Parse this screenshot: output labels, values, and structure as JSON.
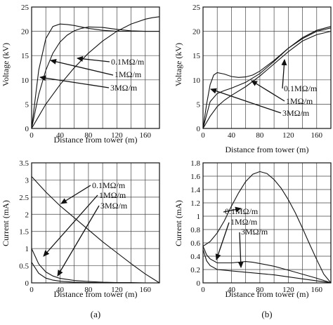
{
  "labels": {
    "left": "(a)",
    "right": "(b)"
  },
  "chart_data": [
    {
      "type": "line",
      "xlabel": "Distance from tower (m)",
      "ylabel": "Voltage (kV)",
      "xlim": [
        0,
        180
      ],
      "ylim": [
        0,
        25
      ],
      "grid": true,
      "xticks": [
        "0",
        "40",
        "80",
        "120",
        "160"
      ],
      "yticks": [
        "0",
        "5",
        "10",
        "15",
        "20",
        "25"
      ],
      "annotations": [
        "0.1MΩ/m",
        "1MΩ/m",
        "3MΩ/m"
      ],
      "series": [
        {
          "name": "0.1MΩ/m",
          "x": [
            0,
            10,
            20,
            30,
            40,
            50,
            60,
            70,
            80,
            100,
            120,
            140,
            160,
            180
          ],
          "y": [
            0,
            12,
            18.5,
            21,
            21.5,
            21.4,
            21.2,
            20.9,
            20.6,
            20.2,
            20,
            20,
            20,
            20
          ]
        },
        {
          "name": "1MΩ/m",
          "x": [
            0,
            10,
            20,
            30,
            40,
            50,
            60,
            70,
            80,
            100,
            120,
            140,
            160,
            180
          ],
          "y": [
            0,
            7,
            12,
            15.5,
            17.8,
            19.2,
            20.1,
            20.6,
            20.9,
            20.8,
            20.4,
            20.1,
            20,
            20
          ]
        },
        {
          "name": "3MΩ/m",
          "x": [
            0,
            10,
            20,
            30,
            40,
            60,
            80,
            100,
            120,
            140,
            160,
            170,
            180
          ],
          "y": [
            0,
            2.5,
            5,
            7,
            9,
            12.5,
            15.5,
            18,
            20,
            21.5,
            22.5,
            22.8,
            23
          ]
        }
      ]
    },
    {
      "type": "line",
      "xlabel": "Distance from tower (m)",
      "ylabel": "Voltage (kV)",
      "xlim": [
        0,
        180
      ],
      "ylim": [
        0,
        25
      ],
      "grid": true,
      "xticks": [
        "0",
        "40",
        "80",
        "120",
        "160"
      ],
      "yticks": [
        "0",
        "5",
        "10",
        "15",
        "20",
        "25"
      ],
      "annotations": [
        "0.1MΩ/m",
        "1MΩ/m",
        "3MΩ/m"
      ],
      "series": [
        {
          "name": "0.1MΩ/m",
          "x": [
            0,
            5,
            10,
            15,
            20,
            30,
            40,
            50,
            60,
            70,
            80,
            100,
            120,
            140,
            160,
            180
          ],
          "y": [
            0,
            5,
            9,
            11,
            11.5,
            11.2,
            10.7,
            10.5,
            10.6,
            11,
            11.8,
            14,
            16.5,
            18.5,
            20,
            20.7
          ]
        },
        {
          "name": "1MΩ/m",
          "x": [
            0,
            10,
            20,
            30,
            40,
            60,
            80,
            100,
            120,
            140,
            160,
            180
          ],
          "y": [
            0,
            5.5,
            7.2,
            7.8,
            8.3,
            9.5,
            11.3,
            13.8,
            16.5,
            18.7,
            20.2,
            21
          ]
        },
        {
          "name": "3MΩ/m",
          "x": [
            0,
            10,
            20,
            30,
            40,
            60,
            80,
            100,
            120,
            140,
            160,
            180
          ],
          "y": [
            0,
            2.5,
            4.5,
            5.8,
            6.8,
            8.6,
            10.8,
            13.3,
            15.8,
            18,
            19.3,
            20
          ]
        }
      ]
    },
    {
      "type": "line",
      "xlabel": "Distance from tower (m)",
      "ylabel": "Current (mA)",
      "xlim": [
        0,
        180
      ],
      "ylim": [
        0,
        3.5
      ],
      "grid": true,
      "xticks": [
        "0",
        "40",
        "80",
        "120",
        "160"
      ],
      "yticks": [
        "0",
        "0.5",
        "1",
        "1.5",
        "2",
        "2.5",
        "3",
        "3.5"
      ],
      "annotations": [
        "0.1MΩ/m",
        "1MΩ/m",
        "3MΩ/m"
      ],
      "series": [
        {
          "name": "0.1MΩ/m",
          "x": [
            0,
            20,
            40,
            60,
            80,
            100,
            120,
            140,
            160,
            180
          ],
          "y": [
            3.1,
            2.65,
            2.25,
            1.9,
            1.55,
            1.2,
            0.88,
            0.56,
            0.26,
            0
          ]
        },
        {
          "name": "1MΩ/m",
          "x": [
            0,
            10,
            20,
            30,
            40,
            60,
            80,
            100,
            120,
            140,
            160,
            180
          ],
          "y": [
            1,
            0.55,
            0.32,
            0.2,
            0.13,
            0.07,
            0.04,
            0.02,
            0.01,
            0.01,
            0,
            0
          ]
        },
        {
          "name": "3MΩ/m",
          "x": [
            0,
            10,
            20,
            30,
            40,
            60,
            80,
            120,
            180
          ],
          "y": [
            0.6,
            0.28,
            0.14,
            0.08,
            0.05,
            0.02,
            0.01,
            0,
            0
          ]
        }
      ]
    },
    {
      "type": "line",
      "xlabel": "Distance from tower (m)",
      "ylabel": "Current (mA)",
      "xlim": [
        0,
        180
      ],
      "ylim": [
        0,
        1.8
      ],
      "grid": true,
      "xticks": [
        "0",
        "40",
        "80",
        "120",
        "160"
      ],
      "yticks": [
        "0",
        "0.2",
        "0.4",
        "0.6",
        "0.8",
        "1",
        "1.2",
        "1.4",
        "1.6",
        "1.8"
      ],
      "annotations": [
        "0.1MΩ/m",
        "1MΩ/m",
        "3MΩ/m"
      ],
      "series": [
        {
          "name": "0.1MΩ/m",
          "x": [
            0,
            10,
            20,
            30,
            40,
            50,
            60,
            70,
            80,
            90,
            100,
            110,
            120,
            130,
            140,
            150,
            160,
            170,
            180
          ],
          "y": [
            0.55,
            0.62,
            0.75,
            0.93,
            1.15,
            1.35,
            1.52,
            1.63,
            1.67,
            1.64,
            1.55,
            1.42,
            1.25,
            1.05,
            0.82,
            0.58,
            0.35,
            0.13,
            0
          ]
        },
        {
          "name": "1MΩ/m",
          "x": [
            0,
            5,
            10,
            20,
            30,
            40,
            50,
            60,
            70,
            80,
            100,
            120,
            140,
            160,
            175,
            180
          ],
          "y": [
            0.55,
            0.42,
            0.36,
            0.3,
            0.3,
            0.3,
            0.31,
            0.32,
            0.31,
            0.29,
            0.25,
            0.19,
            0.13,
            0.07,
            0.02,
            0
          ]
        },
        {
          "name": "3MΩ/m",
          "x": [
            0,
            5,
            10,
            20,
            30,
            40,
            60,
            80,
            100,
            120,
            140,
            160,
            175,
            180
          ],
          "y": [
            0.5,
            0.33,
            0.26,
            0.2,
            0.19,
            0.18,
            0.16,
            0.14,
            0.12,
            0.09,
            0.06,
            0.03,
            0.01,
            0
          ]
        }
      ]
    }
  ]
}
